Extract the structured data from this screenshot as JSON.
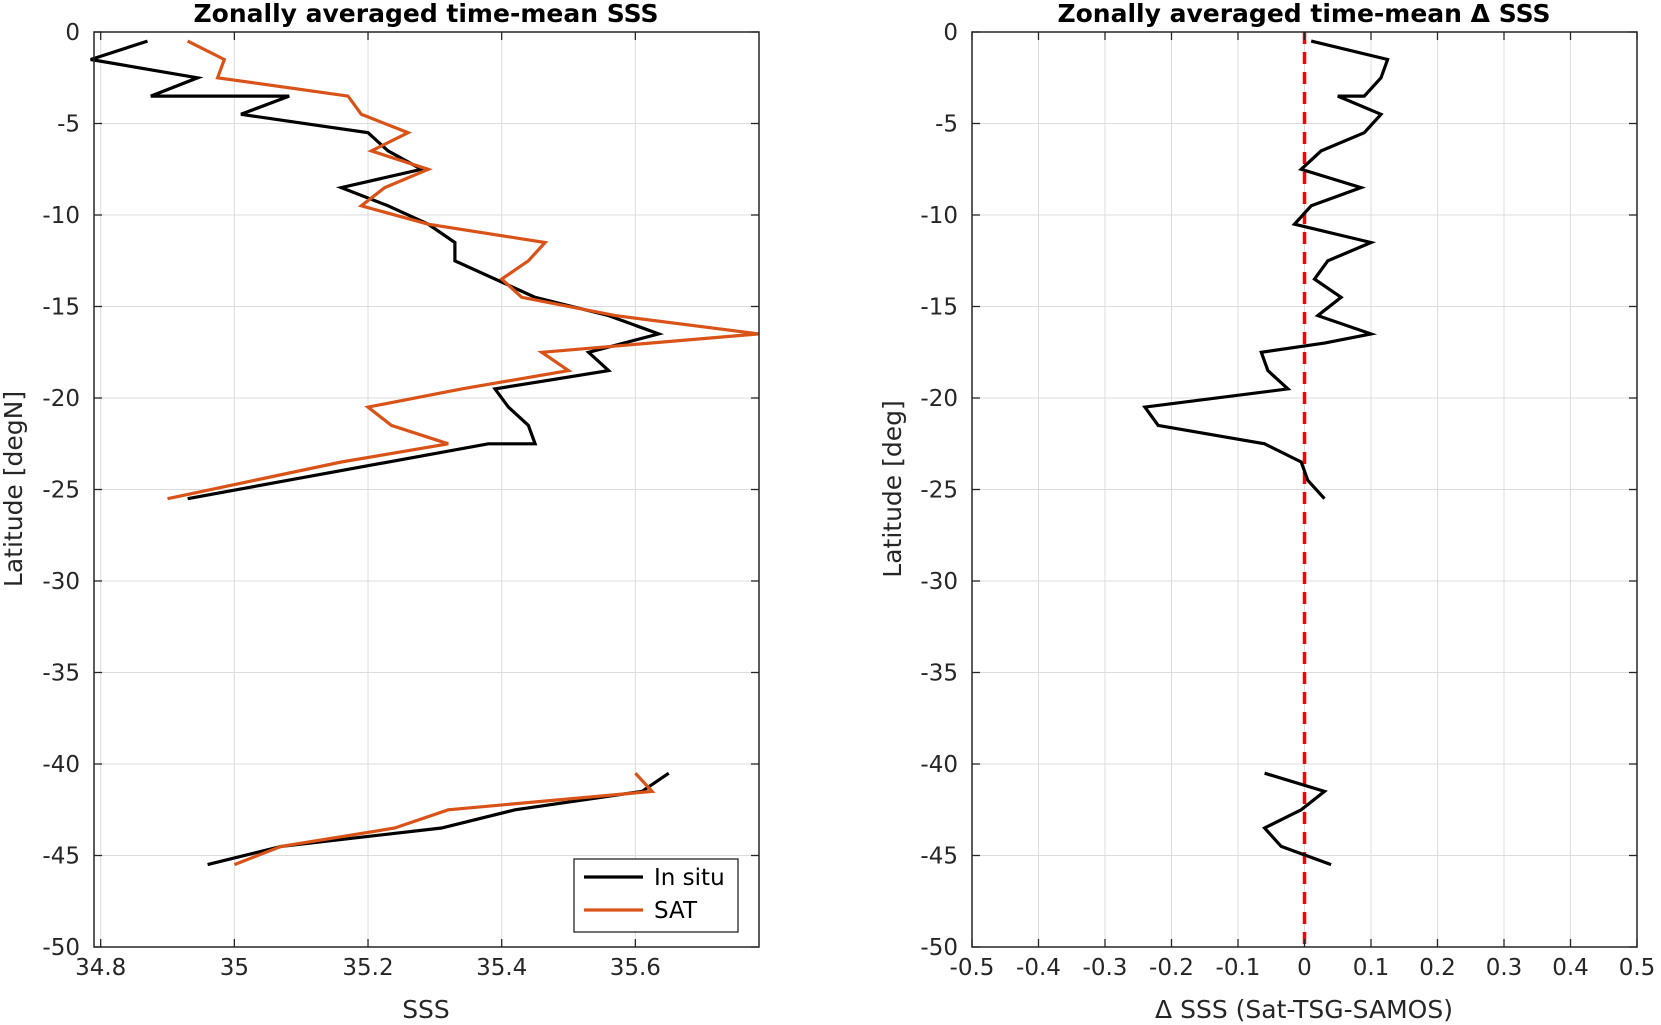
{
  "colors": {
    "insitu": "#000000",
    "sat": "#d95319",
    "zero_line": "#ff0000",
    "grid": "#dcdcdc",
    "axis": "#262626"
  },
  "chart_data": [
    {
      "type": "line",
      "title": "Zonally averaged time-mean SSS",
      "xlabel": "SSS",
      "ylabel": "Latitude [degN]",
      "xlim": [
        34.79,
        35.785
      ],
      "ylim": [
        -50,
        0
      ],
      "xticks": [
        34.8,
        35,
        35.2,
        35.4,
        35.6
      ],
      "xtick_labels": [
        "34.8",
        "35",
        "35.2",
        "35.4",
        "35.6"
      ],
      "yticks": [
        0,
        -5,
        -10,
        -15,
        -20,
        -25,
        -30,
        -35,
        -40,
        -45,
        -50
      ],
      "ytick_labels": [
        "0",
        "-5",
        "-10",
        "-15",
        "-20",
        "-25",
        "-30",
        "-35",
        "-40",
        "-45",
        "-50"
      ],
      "grid": true,
      "legend": "bottom-right",
      "series": [
        {
          "name": "In situ",
          "color": "#000000",
          "segments": [
            [
              [
                34.87,
                -0.5
              ],
              [
                34.785,
                -1.5
              ],
              [
                34.945,
                -2.5
              ],
              [
                34.875,
                -3.5
              ],
              [
                35.082,
                -3.5
              ],
              [
                35.01,
                -4.5
              ],
              [
                35.2,
                -5.5
              ],
              [
                35.23,
                -6.5
              ],
              [
                35.28,
                -7.5
              ],
              [
                35.16,
                -8.5
              ],
              [
                35.23,
                -9.5
              ],
              [
                35.29,
                -10.5
              ],
              [
                35.33,
                -11.5
              ],
              [
                35.33,
                -12.5
              ],
              [
                35.45,
                -14.5
              ],
              [
                35.56,
                -15.5
              ],
              [
                35.635,
                -16.5
              ],
              [
                35.53,
                -17.5
              ],
              [
                35.56,
                -18.5
              ],
              [
                35.39,
                -19.5
              ],
              [
                35.41,
                -20.5
              ],
              [
                35.44,
                -21.5
              ],
              [
                35.45,
                -22.5
              ],
              [
                35.38,
                -22.5
              ],
              [
                35.08,
                -24.5
              ],
              [
                34.93,
                -25.5
              ]
            ],
            [
              [
                35.65,
                -40.5
              ],
              [
                35.61,
                -41.5
              ],
              [
                35.42,
                -42.5
              ],
              [
                35.31,
                -43.5
              ],
              [
                35.07,
                -44.5
              ],
              [
                34.96,
                -45.5
              ]
            ]
          ]
        },
        {
          "name": "SAT",
          "color": "#d95319",
          "segments": [
            [
              [
                34.93,
                -0.5
              ],
              [
                34.985,
                -1.5
              ],
              [
                34.975,
                -2.5
              ],
              [
                35.17,
                -3.5
              ],
              [
                35.19,
                -4.5
              ],
              [
                35.26,
                -5.5
              ],
              [
                35.205,
                -6.5
              ],
              [
                35.29,
                -7.5
              ],
              [
                35.225,
                -8.5
              ],
              [
                35.19,
                -9.5
              ],
              [
                35.29,
                -10.5
              ],
              [
                35.465,
                -11.5
              ],
              [
                35.44,
                -12.5
              ],
              [
                35.4,
                -13.5
              ],
              [
                35.43,
                -14.5
              ],
              [
                35.57,
                -15.5
              ],
              [
                35.785,
                -16.5
              ],
              [
                35.46,
                -17.5
              ],
              [
                35.5,
                -18.5
              ],
              [
                35.34,
                -19.5
              ],
              [
                35.2,
                -20.5
              ],
              [
                35.235,
                -21.5
              ],
              [
                35.32,
                -22.5
              ],
              [
                35.16,
                -23.5
              ],
              [
                34.9,
                -25.5
              ]
            ],
            [
              [
                35.6,
                -40.5
              ],
              [
                35.625,
                -41.5
              ],
              [
                35.32,
                -42.5
              ],
              [
                35.24,
                -43.5
              ],
              [
                35.07,
                -44.5
              ],
              [
                35,
                -45.5
              ]
            ]
          ]
        }
      ]
    },
    {
      "type": "line",
      "title": "Zonally averaged time-mean Δ SSS",
      "xlabel": "Δ SSS (Sat-TSG-SAMOS)",
      "ylabel": "Latitude [deg]",
      "xlim": [
        -0.5,
        0.5
      ],
      "ylim": [
        -50,
        0
      ],
      "xticks": [
        -0.5,
        -0.4,
        -0.3,
        -0.2,
        -0.1,
        0,
        0.1,
        0.2,
        0.3,
        0.4,
        0.5
      ],
      "xtick_labels": [
        "-0.5",
        "-0.4",
        "-0.3",
        "-0.2",
        "-0.1",
        "0",
        "0.1",
        "0.2",
        "0.3",
        "0.4",
        "0.5"
      ],
      "yticks": [
        0,
        -5,
        -10,
        -15,
        -20,
        -25,
        -30,
        -35,
        -40,
        -45,
        -50
      ],
      "ytick_labels": [
        "0",
        "-5",
        "-10",
        "-15",
        "-20",
        "-25",
        "-30",
        "-35",
        "-40",
        "-45",
        "-50"
      ],
      "grid": true,
      "reference_line_x": 0,
      "series": [
        {
          "color": "#000000",
          "segments": [
            [
              [
                0.01,
                -0.5
              ],
              [
                0.125,
                -1.5
              ],
              [
                0.115,
                -2.5
              ],
              [
                0.09,
                -3.5
              ],
              [
                0.05,
                -3.5
              ],
              [
                0.115,
                -4.5
              ],
              [
                0.09,
                -5.5
              ],
              [
                0.025,
                -6.5
              ],
              [
                -0.005,
                -7.5
              ],
              [
                0.085,
                -8.5
              ],
              [
                0.01,
                -9.5
              ],
              [
                -0.015,
                -10.5
              ],
              [
                0.1,
                -11.5
              ],
              [
                0.035,
                -12.5
              ],
              [
                0.015,
                -13.5
              ],
              [
                0.055,
                -14.5
              ],
              [
                0.02,
                -15.5
              ],
              [
                0.1,
                -16.5
              ],
              [
                0.03,
                -17
              ],
              [
                -0.065,
                -17.5
              ],
              [
                -0.055,
                -18.5
              ],
              [
                -0.025,
                -19.5
              ],
              [
                -0.24,
                -20.5
              ],
              [
                -0.22,
                -21.5
              ],
              [
                -0.06,
                -22.5
              ],
              [
                -0.005,
                -23.5
              ],
              [
                0.005,
                -24.5
              ],
              [
                0.03,
                -25.5
              ]
            ],
            [
              [
                -0.06,
                -40.5
              ],
              [
                0.03,
                -41.5
              ],
              [
                -0.005,
                -42.5
              ],
              [
                -0.06,
                -43.5
              ],
              [
                -0.035,
                -44.5
              ],
              [
                0.04,
                -45.5
              ]
            ]
          ]
        }
      ]
    }
  ],
  "legend": {
    "items": [
      "In situ",
      "SAT"
    ]
  }
}
